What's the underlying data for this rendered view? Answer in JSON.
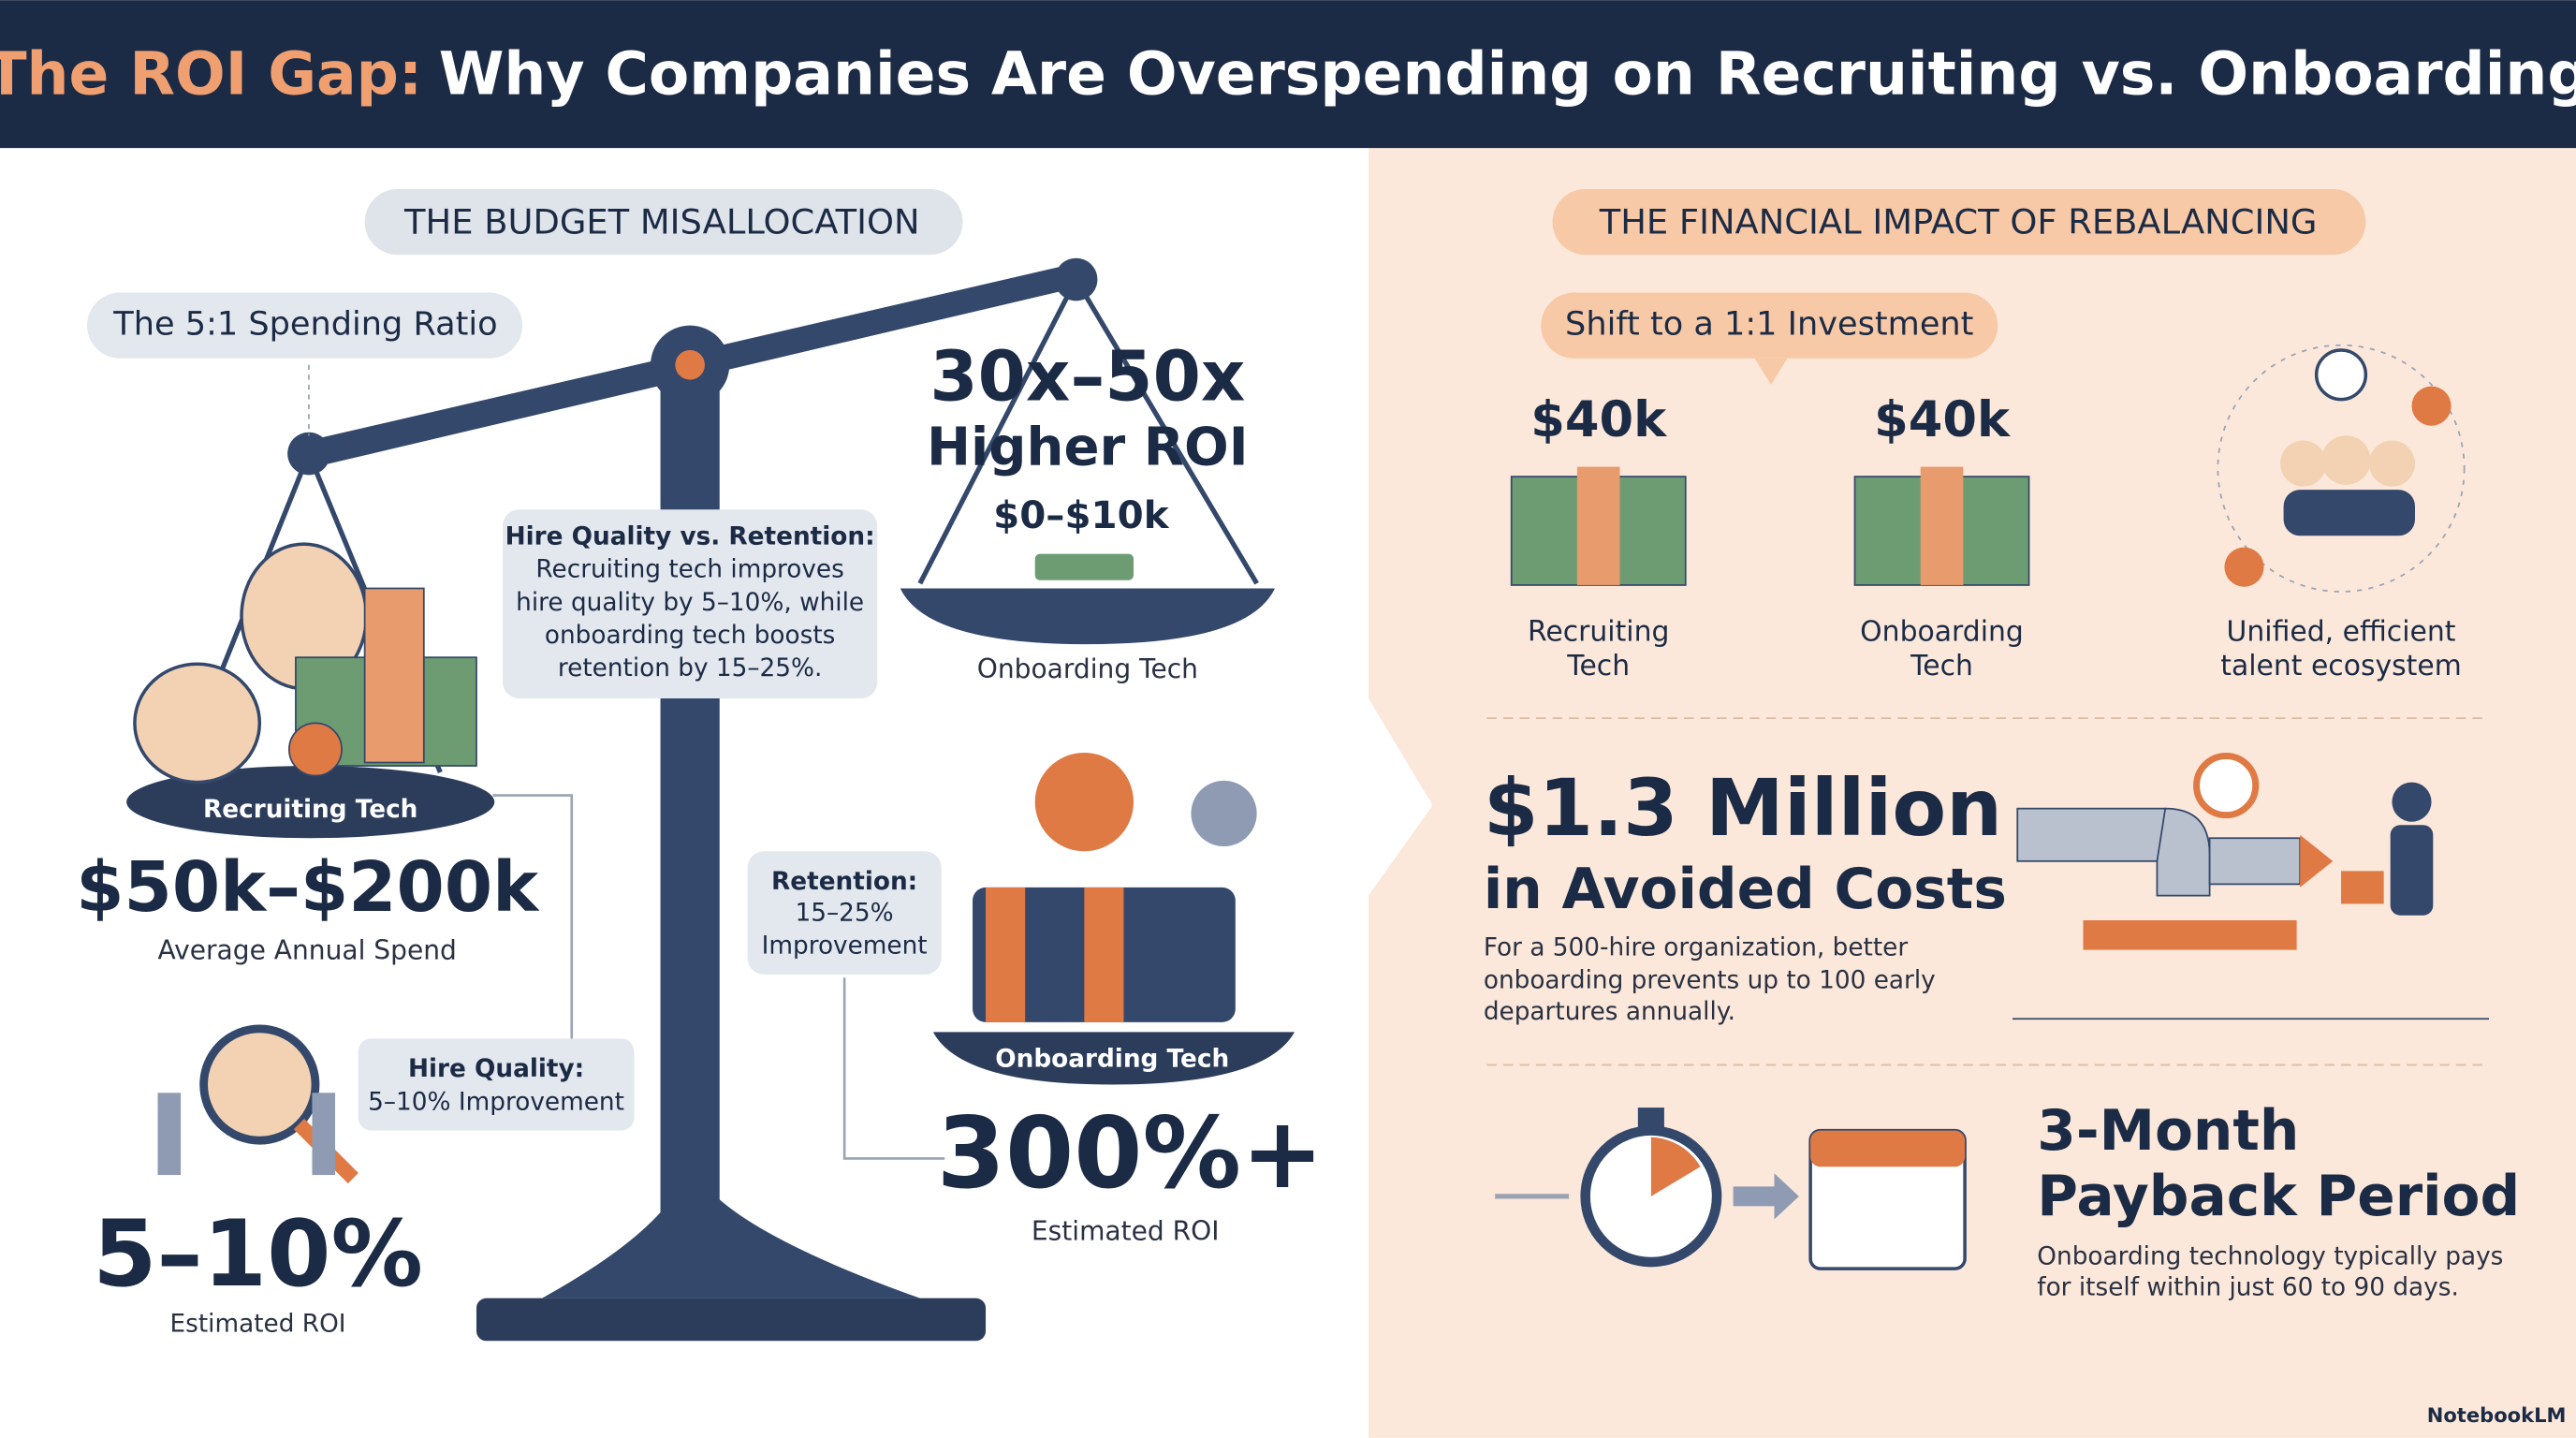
{
  "header": {
    "title_highlight": "The ROI Gap:",
    "title_rest": "Why Companies Are Overspending on Recruiting vs. Onboarding"
  },
  "left": {
    "section_title": "THE BUDGET MISALLOCATION",
    "ratio_label": "The 5:1 Spending Ratio",
    "recruiting": {
      "pan_label": "Recruiting Tech",
      "spend": "$50k–$200k",
      "spend_caption": "Average Annual Spend",
      "callout_title": "Hire Quality:",
      "callout_text": "5–10% Improvement",
      "roi": "5–10%",
      "roi_caption": "Estimated ROI"
    },
    "onboarding_top": {
      "multiplier": "30x–50x",
      "multiplier_caption": "Higher ROI",
      "spend": "$0–$10k",
      "pan_caption": "Onboarding Tech"
    },
    "comparison": {
      "title": "Hire Quality vs. Retention:",
      "lines": [
        "Recruiting tech improves",
        "hire quality by 5–10%, while",
        "onboarding tech boosts",
        "retention by 15–25%."
      ]
    },
    "onboarding": {
      "callout_title": "Retention:",
      "callout_lines": [
        "15–25%",
        "Improvement"
      ],
      "pan_label": "Onboarding Tech",
      "roi": "300%+",
      "roi_caption": "Estimated ROI"
    }
  },
  "right": {
    "section_title": "THE FINANCIAL IMPACT OF REBALANCING",
    "shift_label": "Shift to a 1:1 Investment",
    "items": [
      {
        "amount": "$40k",
        "label_lines": [
          "Recruiting",
          "Tech"
        ]
      },
      {
        "amount": "$40k",
        "label_lines": [
          "Onboarding",
          "Tech"
        ]
      },
      {
        "label_lines": [
          "Unified, efficient",
          "talent ecosystem"
        ]
      }
    ],
    "savings": {
      "headline_lines": [
        "$1.3 Million",
        "in Avoided Costs"
      ],
      "text_lines": [
        "For a 500-hire organization, better",
        "onboarding prevents up to 100 early",
        "departures annually."
      ]
    },
    "payback": {
      "headline_lines": [
        "3-Month",
        "Payback Period"
      ],
      "text_lines": [
        "Onboarding technology typically pays",
        "for itself within just 60 to 90 days."
      ]
    },
    "brand": "NotebookLM"
  }
}
